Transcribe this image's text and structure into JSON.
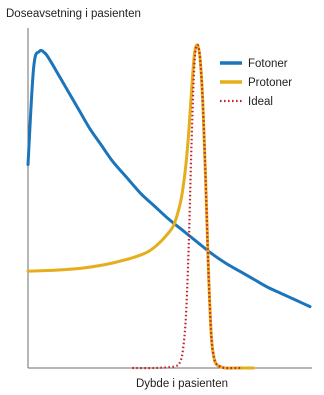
{
  "chart_data": {
    "type": "line",
    "ylabel": "Doseavsetning i pasienten",
    "xlabel": "Dybde i pasienten",
    "ticks": "none",
    "grid": false,
    "legend_position": "top-right",
    "xlim": [
      0,
      100
    ],
    "ylim": [
      0,
      100
    ],
    "series": [
      {
        "name": "Fotoner",
        "color": "#1b75bb",
        "style": "solid",
        "x": [
          0,
          2,
          4,
          6,
          8,
          10,
          14,
          18,
          22,
          26,
          30,
          35,
          40,
          45,
          50,
          55,
          60,
          65,
          70,
          75,
          80,
          85,
          90,
          95,
          100
        ],
        "y": [
          63,
          93,
          98,
          97.5,
          95,
          92,
          86,
          80,
          74,
          69,
          64,
          59,
          54,
          50,
          46,
          42.5,
          39,
          35.5,
          32.5,
          30,
          27.5,
          25,
          23,
          21,
          19
        ]
      },
      {
        "name": "Protoner",
        "color": "#e6ad1c",
        "style": "solid",
        "x": [
          0,
          10,
          20,
          30,
          40,
          45,
          50,
          52,
          54,
          55,
          56,
          57,
          58,
          59,
          60,
          61,
          62,
          63,
          64,
          65,
          66,
          67,
          68,
          70,
          75,
          80
        ],
        "y": [
          30,
          30.3,
          31,
          32.5,
          35,
          37.5,
          42,
          45,
          51,
          56,
          63,
          73,
          86,
          97,
          100,
          96,
          82,
          58,
          30,
          10,
          3,
          1,
          0.5,
          0,
          0,
          0
        ]
      },
      {
        "name": "Ideal",
        "color": "#c1272d",
        "style": "dotted",
        "x": [
          37,
          45,
          52,
          54,
          55,
          56,
          57,
          58,
          59,
          60,
          61,
          62,
          63,
          64,
          65,
          66,
          67,
          68,
          70,
          76
        ],
        "y": [
          0,
          0,
          0.5,
          2,
          6,
          16,
          38,
          70,
          94,
          100,
          96,
          82,
          58,
          30,
          10,
          3,
          1,
          0.5,
          0,
          0
        ]
      }
    ]
  }
}
